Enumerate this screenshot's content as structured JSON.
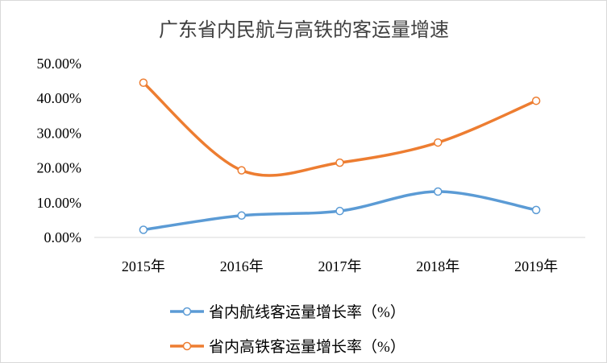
{
  "chart_data": {
    "type": "line",
    "title": "广东省内民航与高铁的客运量增速",
    "xlabel": "",
    "ylabel": "",
    "categories": [
      "2015年",
      "2016年",
      "2017年",
      "2018年",
      "2019年"
    ],
    "ylim": [
      0,
      50
    ],
    "yticks": [
      "0.00%",
      "10.00%",
      "20.00%",
      "30.00%",
      "40.00%",
      "50.00%"
    ],
    "grid": false,
    "legend_position": "bottom",
    "series": [
      {
        "name": "省内航线客运量增长率（%）",
        "color": "#5b9bd5",
        "values": [
          2.2,
          6.3,
          7.6,
          13.2,
          7.9
        ]
      },
      {
        "name": "省内高铁客运量增长率（%）",
        "color": "#ed7d31",
        "values": [
          44.5,
          19.3,
          21.5,
          27.3,
          39.3
        ]
      }
    ]
  }
}
